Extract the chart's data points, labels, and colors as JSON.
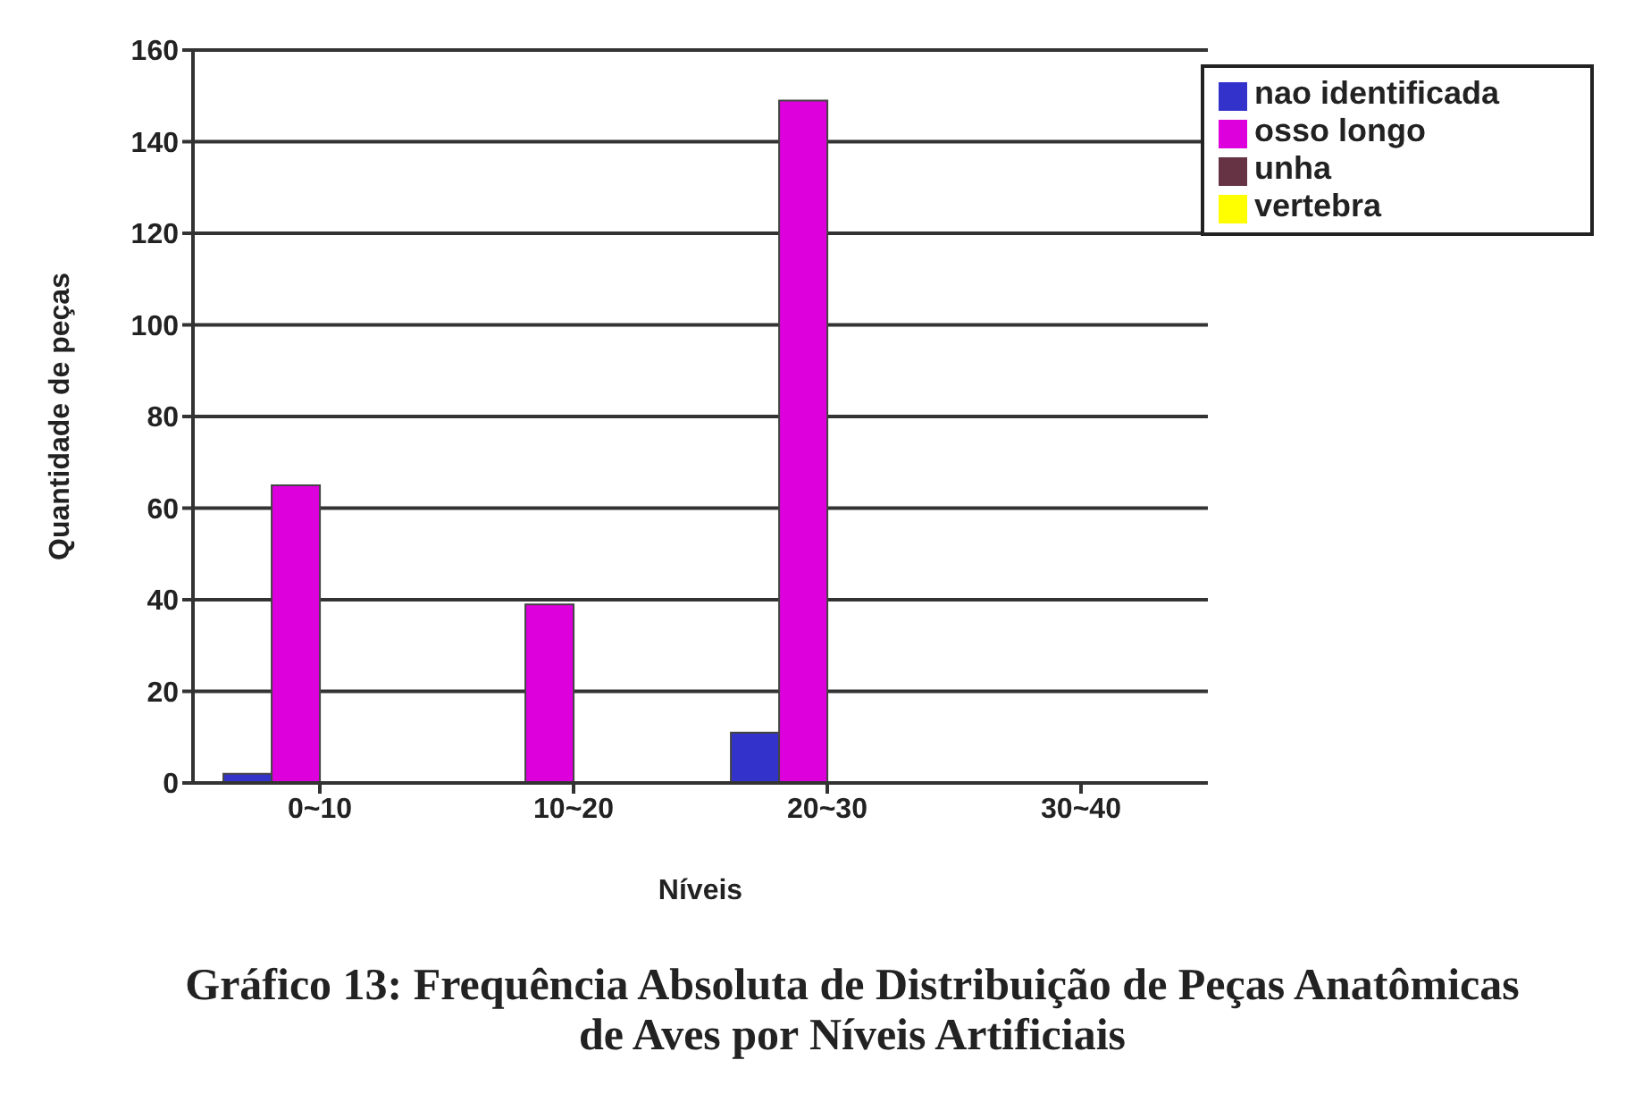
{
  "chart_data": {
    "type": "bar",
    "title": "Gráfico 13: Frequência Absoluta de Distribuição de Peças Anatômicas de Aves por Níveis Artificiais",
    "xlabel": "Níveis",
    "ylabel": "Quantidade de peças",
    "categories": [
      "0~10",
      "10~20",
      "20~30",
      "30~40"
    ],
    "series": [
      {
        "name": "nao identificada",
        "color": "#3333cc",
        "values": [
          2,
          null,
          11,
          null
        ]
      },
      {
        "name": "osso longo",
        "color": "#dd00dd",
        "values": [
          65,
          39,
          149,
          0
        ]
      },
      {
        "name": "unha",
        "color": "#663344",
        "values": [
          null,
          null,
          0,
          null
        ]
      },
      {
        "name": "vertebra",
        "color": "#ffff00",
        "values": [
          null,
          0,
          null,
          null
        ]
      }
    ],
    "ylim": [
      0,
      160
    ],
    "yticks": [
      0,
      20,
      40,
      60,
      80,
      100,
      120,
      140,
      160
    ],
    "grid": "y",
    "legend": "top right"
  }
}
